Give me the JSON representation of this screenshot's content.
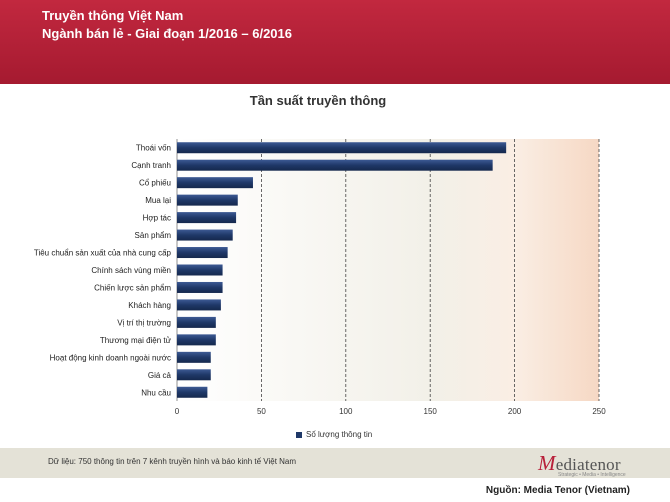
{
  "header": {
    "line1": "Truyền thông Việt Nam",
    "line2": "Ngành bán lẻ - Giai đoạn 1/2016 – 6/2016",
    "color": "#b0213a"
  },
  "chart_data": {
    "type": "bar",
    "orientation": "horizontal",
    "title": "Tần suất truyền thông",
    "categories": [
      "Thoái vốn",
      "Cạnh tranh",
      "Cổ phiếu",
      "Mua lại",
      "Hợp tác",
      "Sản phẩm",
      "Tiêu chuẩn sản xuất của nhà cung cấp",
      "Chính sách vùng miền",
      "Chiến lược sản phẩm",
      "Khách hàng",
      "Vị trí thị trường",
      "Thương mại điện tử",
      "Hoạt động kinh doanh ngoài nước",
      "Giá cả",
      "Nhu cầu"
    ],
    "series": [
      {
        "name": "Số lượng thông tin",
        "values": [
          195,
          187,
          45,
          36,
          35,
          33,
          30,
          27,
          27,
          26,
          23,
          23,
          20,
          20,
          18
        ],
        "color": "#1f3868"
      }
    ],
    "xlim": [
      0,
      250
    ],
    "xticks": [
      0,
      50,
      100,
      150,
      200,
      250
    ],
    "grid": "dashed vertical",
    "legend": "bottom-center"
  },
  "footer": {
    "note": "Dữ liệu: 750 thông tin trên 7 kênh truyền hình và báo kinh tế Việt Nam",
    "logo_initial": "M",
    "logo_text": "ediatenor",
    "logo_tagline": "Strategic • Media • Intelligence",
    "source": "Nguồn: Media Tenor (Vietnam)"
  }
}
